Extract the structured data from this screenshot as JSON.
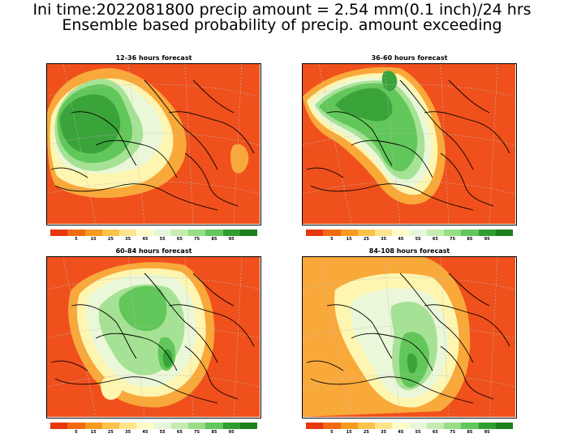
{
  "header": {
    "title_line1": "Ini time:2022081800 precip amount = 2.54 mm(0.1 inch)/24 hrs",
    "title_line2": "Ensemble based probability of precip. amount exceeding"
  },
  "panels": [
    {
      "title": "12-36 hours forecast"
    },
    {
      "title": "36-60 hours forecast"
    },
    {
      "title": "60-84 hours forecast"
    },
    {
      "title": "84-108 hours forecast"
    }
  ],
  "colorbar": {
    "labels": [
      "5",
      "15",
      "25",
      "35",
      "45",
      "55",
      "65",
      "75",
      "85",
      "95"
    ],
    "colors": [
      "#e8360e",
      "#f06a10",
      "#f79a20",
      "#fbc24a",
      "#fde48a",
      "#fdfbc8",
      "#e6f6da",
      "#c4ecb0",
      "#96dd84",
      "#62c75a",
      "#2f9e2f",
      "#1b7f1b"
    ]
  },
  "map_colors": {
    "background": "#f0501c",
    "contour_green_dark": "#3aa33a",
    "contour_green": "#62c75a",
    "contour_green_light": "#a6e295",
    "contour_pale": "#eaf7d8",
    "contour_yellow": "#fdf5b0",
    "contour_orange": "#f9a83a",
    "lines": "#000000",
    "grid": "#bbbbbb"
  }
}
